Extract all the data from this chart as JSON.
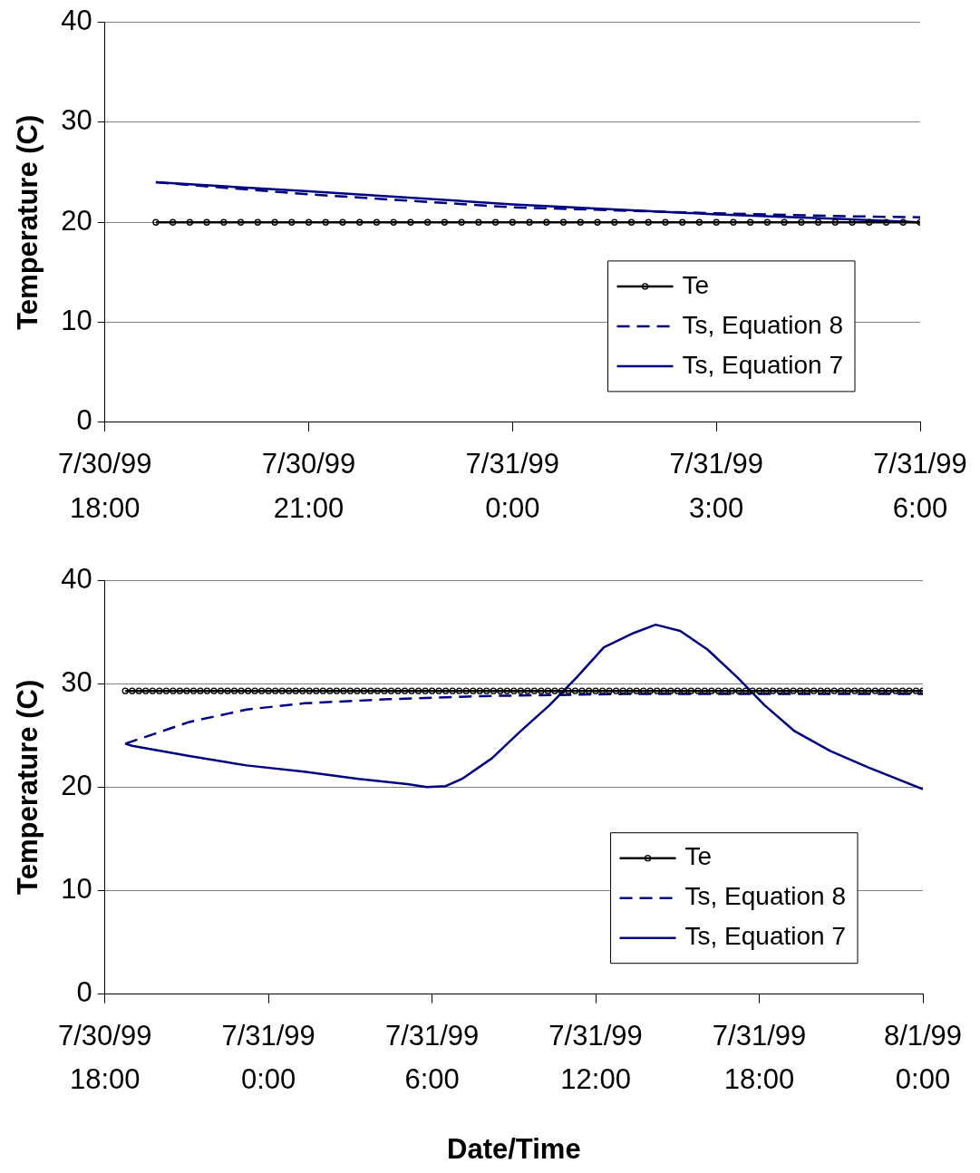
{
  "chart_data": [
    {
      "type": "line",
      "ylabel": "Temperature (C)",
      "xlim": [
        "1999-07-30T18:00",
        "1999-07-31T06:00"
      ],
      "xticks": [
        {
          "value": "1999-07-30T18:00",
          "label": "7/30/99 18:00"
        },
        {
          "value": "1999-07-30T21:00",
          "label": "7/30/99 21:00"
        },
        {
          "value": "1999-07-31T00:00",
          "label": "7/31/99 0:00"
        },
        {
          "value": "1999-07-31T03:00",
          "label": "7/31/99 3:00"
        },
        {
          "value": "1999-07-31T06:00",
          "label": "7/31/99 6:00"
        }
      ],
      "ylim": [
        0,
        40
      ],
      "yticks": [
        0,
        10,
        20,
        30,
        40
      ],
      "grid": "y",
      "legend": "bottom right",
      "series": [
        {
          "name": "Te",
          "color": "#000000",
          "marker": "circle",
          "line_style": "solid",
          "x": [
            "1999-07-30T18:45",
            "1999-07-30T19:00",
            "1999-07-30T19:15",
            "1999-07-30T19:30",
            "1999-07-30T19:45",
            "1999-07-30T20:00",
            "1999-07-30T20:15",
            "1999-07-30T20:30",
            "1999-07-30T20:45",
            "1999-07-30T21:00",
            "1999-07-30T21:15",
            "1999-07-30T21:30",
            "1999-07-30T21:45",
            "1999-07-30T22:00",
            "1999-07-30T22:15",
            "1999-07-30T22:30",
            "1999-07-30T22:45",
            "1999-07-30T23:00",
            "1999-07-30T23:15",
            "1999-07-30T23:30",
            "1999-07-30T23:45",
            "1999-07-31T00:00",
            "1999-07-31T00:15",
            "1999-07-31T00:30",
            "1999-07-31T00:45",
            "1999-07-31T01:00",
            "1999-07-31T01:15",
            "1999-07-31T01:30",
            "1999-07-31T01:45",
            "1999-07-31T02:00",
            "1999-07-31T02:15",
            "1999-07-31T02:30",
            "1999-07-31T02:45",
            "1999-07-31T03:00",
            "1999-07-31T03:15",
            "1999-07-31T03:30",
            "1999-07-31T03:45",
            "1999-07-31T04:00",
            "1999-07-31T04:15",
            "1999-07-31T04:30",
            "1999-07-31T04:45",
            "1999-07-31T05:00",
            "1999-07-31T05:15",
            "1999-07-31T05:30",
            "1999-07-31T05:45",
            "1999-07-31T06:00"
          ],
          "values": [
            20,
            20,
            20,
            20,
            20,
            20,
            20,
            20,
            20,
            20,
            20,
            20,
            20,
            20,
            20,
            20,
            20,
            20,
            20,
            20,
            20,
            20,
            20,
            20,
            20,
            20,
            20,
            20,
            20,
            20,
            20,
            20,
            20,
            20,
            20,
            20,
            20,
            20,
            20,
            20,
            20,
            20,
            20,
            20,
            20,
            20
          ]
        },
        {
          "name": "Ts, Equation 8",
          "color": "#000080",
          "marker": "none",
          "line_style": "dashed",
          "x": [
            "1999-07-30T18:45",
            "1999-07-30T21:00",
            "1999-07-31T00:00",
            "1999-07-31T03:00",
            "1999-07-31T05:00",
            "1999-07-31T06:00"
          ],
          "values": [
            24,
            22.8,
            21.5,
            20.9,
            20.6,
            20.5
          ]
        },
        {
          "name": "Ts, Equation 7",
          "color": "#000080",
          "marker": "none",
          "line_style": "solid",
          "x": [
            "1999-07-30T18:45",
            "1999-07-30T21:00",
            "1999-07-31T00:00",
            "1999-07-31T03:00",
            "1999-07-31T05:00",
            "1999-07-31T06:00"
          ],
          "values": [
            24,
            23.1,
            21.8,
            20.8,
            20.3,
            20
          ]
        }
      ]
    },
    {
      "type": "line",
      "xlabel": "Date/Time",
      "ylabel": "Temperature (C)",
      "xlim": [
        "1999-07-30T18:00",
        "1999-08-01T00:00"
      ],
      "xticks": [
        {
          "value": "1999-07-30T18:00",
          "label": "7/30/99 18:00"
        },
        {
          "value": "1999-07-31T00:00",
          "label": "7/31/99 0:00"
        },
        {
          "value": "1999-07-31T06:00",
          "label": "7/31/99 6:00"
        },
        {
          "value": "1999-07-31T12:00",
          "label": "7/31/99 12:00"
        },
        {
          "value": "1999-07-31T18:00",
          "label": "7/31/99 18:00"
        },
        {
          "value": "1999-08-01T00:00",
          "label": "8/1/99 0:00"
        }
      ],
      "ylim": [
        0,
        40
      ],
      "yticks": [
        0,
        10,
        20,
        30,
        40
      ],
      "grid": "y",
      "legend": "bottom right",
      "series": [
        {
          "name": "Te",
          "color": "#000000",
          "marker": "circle",
          "line_style": "solid",
          "x": [
            "1999-07-30T18:45",
            "1999-07-30T19:00",
            "1999-07-30T19:15",
            "1999-07-30T19:30",
            "1999-07-30T19:45",
            "1999-07-30T20:00",
            "1999-07-30T20:15",
            "1999-07-30T20:30",
            "1999-07-30T20:45",
            "1999-07-30T21:00",
            "1999-07-30T21:15",
            "1999-07-30T21:30",
            "1999-07-30T21:45",
            "1999-07-30T22:00",
            "1999-07-30T22:15",
            "1999-07-30T22:30",
            "1999-07-30T22:45",
            "1999-07-30T23:00",
            "1999-07-30T23:15",
            "1999-07-30T23:30",
            "1999-07-30T23:45",
            "1999-07-31T00:00",
            "1999-07-31T00:15",
            "1999-07-31T00:30",
            "1999-07-31T00:45",
            "1999-07-31T01:00",
            "1999-07-31T01:15",
            "1999-07-31T01:30",
            "1999-07-31T01:45",
            "1999-07-31T02:00",
            "1999-07-31T02:15",
            "1999-07-31T02:30",
            "1999-07-31T02:45",
            "1999-07-31T03:00",
            "1999-07-31T03:15",
            "1999-07-31T03:30",
            "1999-07-31T03:45",
            "1999-07-31T04:00",
            "1999-07-31T04:15",
            "1999-07-31T04:30",
            "1999-07-31T04:45",
            "1999-07-31T05:00",
            "1999-07-31T05:15",
            "1999-07-31T05:30",
            "1999-07-31T05:45",
            "1999-07-31T06:00",
            "1999-07-31T06:15",
            "1999-07-31T06:30",
            "1999-07-31T06:45",
            "1999-07-31T07:00",
            "1999-07-31T07:15",
            "1999-07-31T07:30",
            "1999-07-31T07:45",
            "1999-07-31T08:00",
            "1999-07-31T08:15",
            "1999-07-31T08:30",
            "1999-07-31T08:45",
            "1999-07-31T09:00",
            "1999-07-31T09:15",
            "1999-07-31T09:30",
            "1999-07-31T09:45",
            "1999-07-31T10:00",
            "1999-07-31T10:15",
            "1999-07-31T10:30",
            "1999-07-31T10:45",
            "1999-07-31T11:00",
            "1999-07-31T11:15",
            "1999-07-31T11:30",
            "1999-07-31T11:45",
            "1999-07-31T12:00",
            "1999-07-31T12:15",
            "1999-07-31T12:30",
            "1999-07-31T12:45",
            "1999-07-31T13:00",
            "1999-07-31T13:15",
            "1999-07-31T13:30",
            "1999-07-31T13:45",
            "1999-07-31T14:00",
            "1999-07-31T14:15",
            "1999-07-31T14:30",
            "1999-07-31T14:45",
            "1999-07-31T15:00",
            "1999-07-31T15:15",
            "1999-07-31T15:30",
            "1999-07-31T15:45",
            "1999-07-31T16:00",
            "1999-07-31T16:15",
            "1999-07-31T16:30",
            "1999-07-31T16:45",
            "1999-07-31T17:00",
            "1999-07-31T17:15",
            "1999-07-31T17:30",
            "1999-07-31T17:45",
            "1999-07-31T18:00",
            "1999-07-31T18:15",
            "1999-07-31T18:30",
            "1999-07-31T18:45",
            "1999-07-31T19:00",
            "1999-07-31T19:15",
            "1999-07-31T19:30",
            "1999-07-31T19:45",
            "1999-07-31T20:00",
            "1999-07-31T20:15",
            "1999-07-31T20:30",
            "1999-07-31T20:45",
            "1999-07-31T21:00",
            "1999-07-31T21:15",
            "1999-07-31T21:30",
            "1999-07-31T21:45",
            "1999-07-31T22:00",
            "1999-07-31T22:15",
            "1999-07-31T22:30",
            "1999-07-31T22:45",
            "1999-07-31T23:00",
            "1999-07-31T23:15",
            "1999-07-31T23:30",
            "1999-07-31T23:45",
            "1999-08-01T00:00"
          ],
          "values": [
            29.3,
            29.3,
            29.3,
            29.3,
            29.3,
            29.3,
            29.3,
            29.3,
            29.3,
            29.3,
            29.3,
            29.3,
            29.3,
            29.3,
            29.3,
            29.3,
            29.3,
            29.3,
            29.3,
            29.3,
            29.3,
            29.3,
            29.3,
            29.3,
            29.3,
            29.3,
            29.3,
            29.3,
            29.3,
            29.3,
            29.3,
            29.3,
            29.3,
            29.3,
            29.3,
            29.3,
            29.3,
            29.3,
            29.3,
            29.3,
            29.3,
            29.3,
            29.3,
            29.3,
            29.3,
            29.3,
            29.3,
            29.3,
            29.3,
            29.3,
            29.3,
            29.3,
            29.3,
            29.3,
            29.3,
            29.3,
            29.3,
            29.3,
            29.3,
            29.3,
            29.3,
            29.3,
            29.3,
            29.3,
            29.3,
            29.3,
            29.3,
            29.3,
            29.3,
            29.3,
            29.3,
            29.3,
            29.3,
            29.3,
            29.3,
            29.3,
            29.3,
            29.3,
            29.3,
            29.3,
            29.3,
            29.3,
            29.3,
            29.3,
            29.3,
            29.3,
            29.3,
            29.3,
            29.3,
            29.3,
            29.3,
            29.3,
            29.3,
            29.3,
            29.3,
            29.3,
            29.3,
            29.3,
            29.3,
            29.3,
            29.3,
            29.3,
            29.3,
            29.3,
            29.3,
            29.3,
            29.3,
            29.3,
            29.3,
            29.3,
            29.3,
            29.3,
            29.3,
            29.3,
            29.3,
            29.3,
            29.3,
            29.3
          ]
        },
        {
          "name": "Ts, Equation 8",
          "color": "#000080",
          "marker": "none",
          "line_style": "dashed",
          "x": [
            "1999-07-30T18:45",
            "1999-07-30T21:06",
            "1999-07-30T23:12",
            "1999-07-31T01:18",
            "1999-07-31T04:24",
            "1999-07-31T07:48",
            "1999-07-31T13:00",
            "1999-08-01T00:00"
          ],
          "values": [
            24.2,
            26.3,
            27.5,
            28.1,
            28.5,
            28.8,
            29,
            29
          ]
        },
        {
          "name": "Ts, Equation 7",
          "color": "#000080",
          "marker": "none",
          "line_style": "solid",
          "x": [
            "1999-07-30T18:45",
            "1999-07-30T19:00",
            "1999-07-30T21:06",
            "1999-07-30T23:12",
            "1999-07-31T01:18",
            "1999-07-31T03:18",
            "1999-07-31T05:06",
            "1999-07-31T05:48",
            "1999-07-31T06:30",
            "1999-07-31T07:06",
            "1999-07-31T08:12",
            "1999-07-31T09:12",
            "1999-07-31T10:18",
            "1999-07-31T11:18",
            "1999-07-31T12:18",
            "1999-07-31T13:24",
            "1999-07-31T14:12",
            "1999-07-31T15:06",
            "1999-07-31T16:06",
            "1999-07-31T17:12",
            "1999-07-31T18:12",
            "1999-07-31T19:18",
            "1999-07-31T20:36",
            "1999-07-31T22:00",
            "1999-08-01T00:00"
          ],
          "values": [
            24.2,
            24,
            23,
            22.1,
            21.5,
            20.8,
            20.3,
            20,
            20.1,
            20.8,
            22.8,
            25.3,
            27.9,
            30.6,
            33.5,
            34.9,
            35.7,
            35.1,
            33.3,
            30.6,
            27.9,
            25.4,
            23.5,
            21.9,
            19.8
          ]
        }
      ]
    }
  ]
}
